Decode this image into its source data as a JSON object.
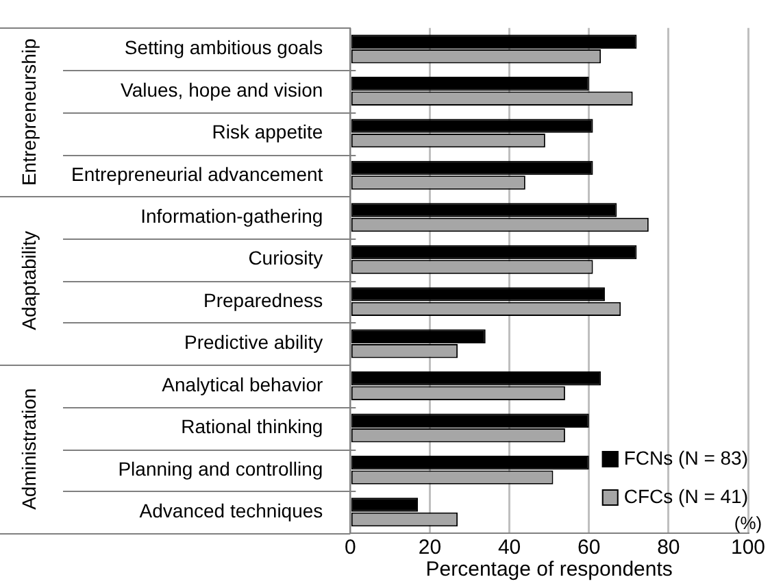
{
  "chart_data": {
    "type": "bar",
    "orientation": "horizontal",
    "xlabel": "Percentage of respondents",
    "categories": [
      "Setting ambitious goals",
      "Values, hope and vision",
      "Risk appetite",
      "Entrepreneurial advancement",
      "Information-gathering",
      "Curiosity",
      "Preparedness",
      "Predictive ability",
      "Analytical behavior",
      "Rational thinking",
      "Planning and controlling",
      "Advanced techniques"
    ],
    "series": [
      {
        "name": "FCNs (N = 83)",
        "color": "#000000",
        "values": [
          72,
          60,
          61,
          61,
          67,
          72,
          64,
          34,
          63,
          60,
          60,
          17
        ]
      },
      {
        "name": "CFCs (N = 41)",
        "color": "#a6a6a6",
        "values": [
          63,
          71,
          49,
          44,
          75,
          61,
          68,
          27,
          54,
          54,
          51,
          27
        ]
      }
    ],
    "xlim": [
      0,
      100
    ],
    "xticks": [
      0,
      20,
      40,
      60,
      80,
      100
    ],
    "grid": "x",
    "legend": "bottom right",
    "annotations": [
      "Entrepreneurship",
      "Adaptability",
      "Administration",
      "(%)"
    ]
  }
}
